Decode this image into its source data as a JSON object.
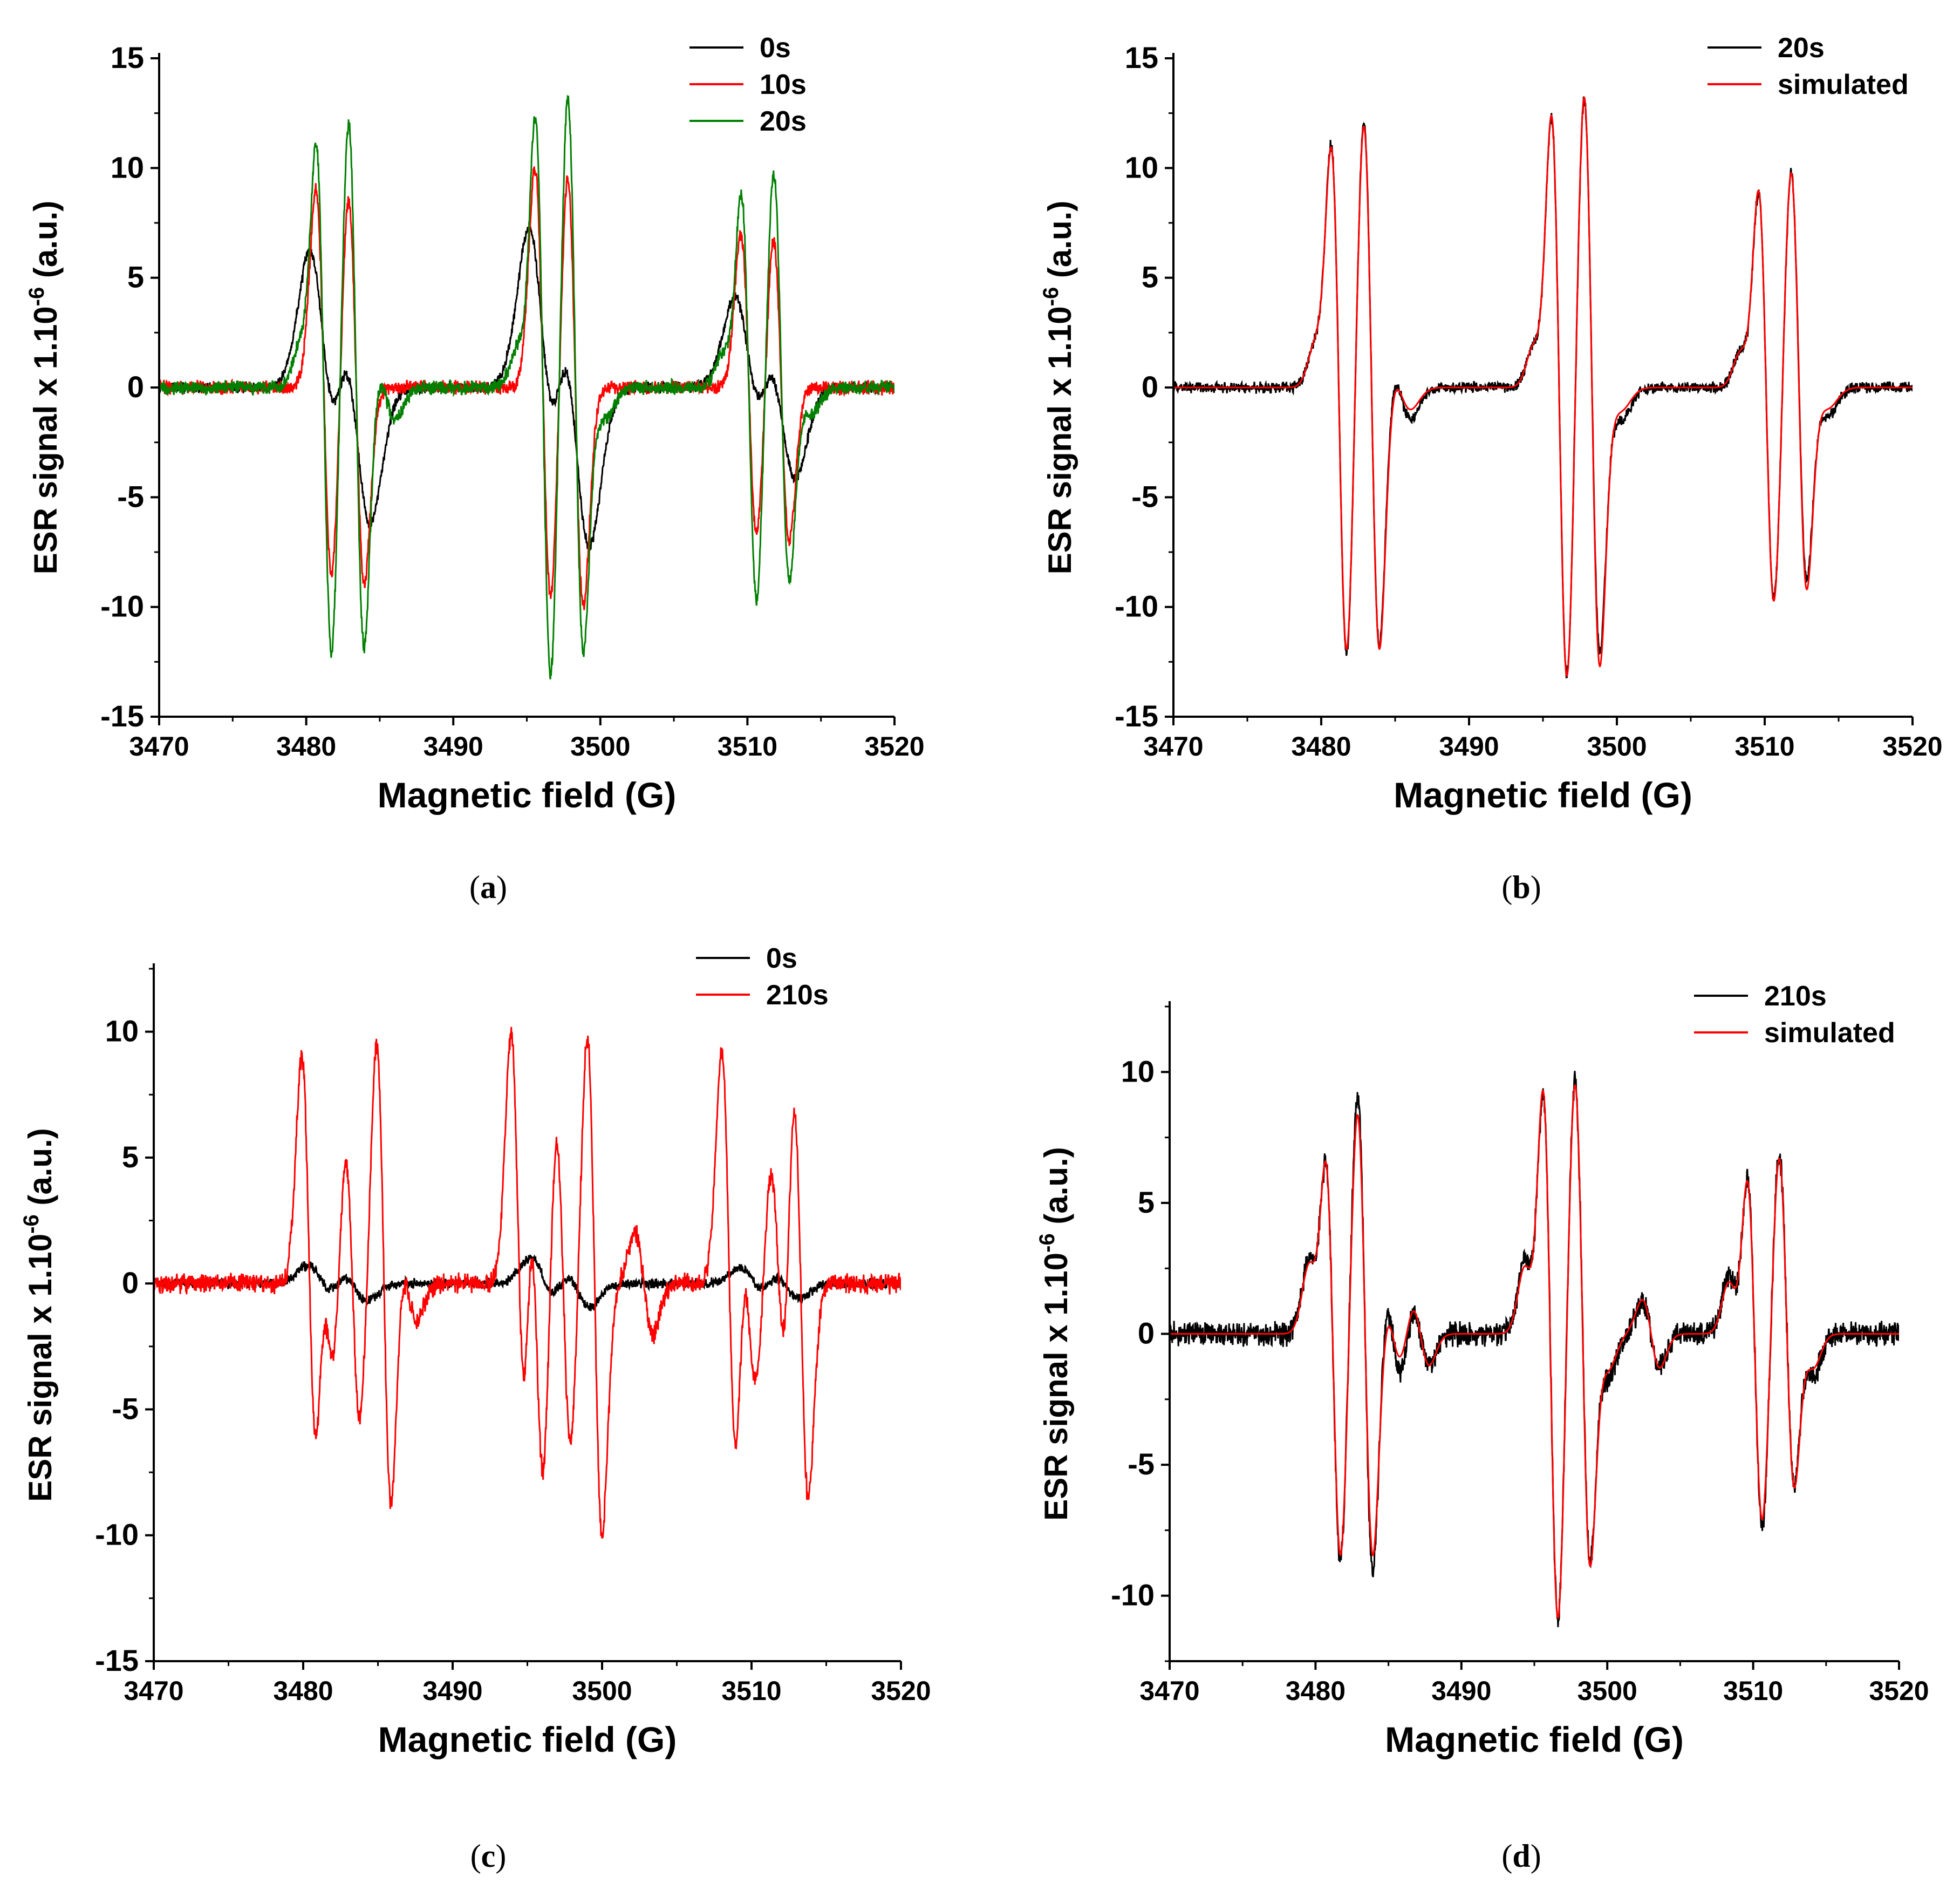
{
  "figure": {
    "captions": [
      {
        "open": "(",
        "letter": "a",
        "close": ")"
      },
      {
        "open": "(",
        "letter": "b",
        "close": ")"
      },
      {
        "open": "(",
        "letter": "c",
        "close": ")"
      },
      {
        "open": "(",
        "letter": "d",
        "close": ")"
      }
    ]
  },
  "chart_data": [
    {
      "type": "line",
      "panel": "a",
      "xlabel": "Magnetic field (G)",
      "ylabel": "ESR signal x 1.10^-6 (a.u.)",
      "ylabel_parts": {
        "main": "ESR signal x 1.10",
        "sup": "-6",
        "tail": " (a.u.)"
      },
      "xlim": [
        3470,
        3520
      ],
      "ylim": [
        -15,
        15
      ],
      "xticks": [
        "3470",
        "3480",
        "3490",
        "3500",
        "3510",
        "3520"
      ],
      "yticks": [
        "-15",
        "-10",
        "-5",
        "0",
        "5",
        "10",
        "15"
      ],
      "legend_position": "top-right",
      "series": [
        {
          "name": "0s",
          "color": "#000000",
          "lines": [
            [
              3481.2,
              1.0,
              6
            ],
            [
              3483.4,
              1.0,
              6
            ],
            [
              3496.1,
              1.0,
              7
            ],
            [
              3498.3,
              1.0,
              7
            ],
            [
              3510.1,
              1.0,
              4
            ],
            [
              3512.3,
              1.0,
              4
            ]
          ],
          "noise": 0.2
        },
        {
          "name": "10s",
          "color": "#ff0000",
          "lines": [
            [
              3481.2,
              0.55,
              9
            ],
            [
              3483.4,
              0.55,
              9
            ],
            [
              3496.1,
              0.55,
              10
            ],
            [
              3498.3,
              0.55,
              10
            ],
            [
              3510.1,
              0.55,
              7
            ],
            [
              3512.3,
              0.55,
              7
            ]
          ],
          "noise": 0.25
        },
        {
          "name": "20s",
          "color": "#008000",
          "lines": [
            [
              3481.2,
              0.55,
              12.6
            ],
            [
              3483.4,
              0.55,
              12.6
            ],
            [
              3496.1,
              0.55,
              13.7
            ],
            [
              3498.3,
              0.55,
              13.5
            ],
            [
              3510.1,
              0.55,
              10.1
            ],
            [
              3512.3,
              0.55,
              10.0
            ],
            [
              3480.0,
              0.55,
              1.6
            ],
            [
              3494.8,
              0.55,
              1.6
            ],
            [
              3508.8,
              0.55,
              1.4
            ],
            [
              3485.3,
              0.75,
              1.4
            ],
            [
              3499.6,
              0.75,
              1.4
            ],
            [
              3513.6,
              0.75,
              1.2
            ]
          ],
          "noise": 0.25
        }
      ]
    },
    {
      "type": "line",
      "panel": "b",
      "xlabel": "Magnetic field (G)",
      "ylabel": "ESR signal x 1.10^-6 (a.u.)",
      "ylabel_parts": {
        "main": "ESR signal x 1.10",
        "sup": "-6",
        "tail": " (a.u.)"
      },
      "xlim": [
        3470,
        3520
      ],
      "ylim": [
        -15,
        15
      ],
      "xticks": [
        "3470",
        "3480",
        "3490",
        "3500",
        "3510",
        "3520"
      ],
      "yticks": [
        "-15",
        "-10",
        "-5",
        "0",
        "5",
        "10",
        "15"
      ],
      "legend_position": "top-right",
      "series": [
        {
          "name": "20s",
          "color": "#000000",
          "lines": [
            [
              3481.2,
              0.55,
              12.6
            ],
            [
              3483.4,
              0.55,
              12.6
            ],
            [
              3496.1,
              0.55,
              13.7
            ],
            [
              3498.3,
              0.55,
              13.5
            ],
            [
              3510.1,
              0.55,
              10.1
            ],
            [
              3512.3,
              0.55,
              10.0
            ],
            [
              3480.0,
              0.55,
              1.6
            ],
            [
              3494.8,
              0.55,
              1.6
            ],
            [
              3508.8,
              0.55,
              1.4
            ],
            [
              3485.3,
              0.75,
              1.4
            ],
            [
              3499.6,
              0.75,
              1.4
            ],
            [
              3513.6,
              0.75,
              1.2
            ]
          ],
          "noise": 0.2
        },
        {
          "name": "simulated",
          "color": "#ff0000",
          "lines": [
            [
              3481.2,
              0.55,
              12.5
            ],
            [
              3483.4,
              0.55,
              12.5
            ],
            [
              3496.1,
              0.55,
              13.8
            ],
            [
              3498.3,
              0.55,
              13.7
            ],
            [
              3510.1,
              0.55,
              10.2
            ],
            [
              3512.3,
              0.55,
              10.1
            ],
            [
              3480.0,
              0.55,
              1.6
            ],
            [
              3494.8,
              0.55,
              1.6
            ],
            [
              3508.8,
              0.55,
              1.4
            ],
            [
              3485.3,
              0.75,
              1.0
            ],
            [
              3499.6,
              0.75,
              1.0
            ],
            [
              3513.6,
              0.75,
              0.9
            ]
          ],
          "noise": 0
        }
      ]
    },
    {
      "type": "line",
      "panel": "c",
      "xlabel": "Magnetic field (G)",
      "ylabel": "ESR signal x 1.10^-6 (a.u.)",
      "ylabel_parts": {
        "main": "ESR signal x 1.10",
        "sup": "-6",
        "tail": " (a.u.)"
      },
      "xlim": [
        3470,
        3520
      ],
      "ylim": [
        -15,
        12.5
      ],
      "xticks": [
        "3470",
        "3480",
        "3490",
        "3500",
        "3510",
        "3520"
      ],
      "yticks": [
        "-15",
        "-10",
        "-5",
        "0",
        "5",
        "10"
      ],
      "legend_position": "top-right",
      "series": [
        {
          "name": "0s",
          "color": "#000000",
          "lines": [
            [
              3481.2,
              0.9,
              0.7
            ],
            [
              3483.4,
              0.9,
              0.7
            ],
            [
              3496.1,
              0.9,
              1.0
            ],
            [
              3498.3,
              0.9,
              0.9
            ],
            [
              3510.1,
              0.9,
              0.6
            ],
            [
              3512.3,
              0.9,
              0.6
            ]
          ],
          "noise": 0.15
        },
        {
          "name": "210s",
          "color": "#ff0000",
          "lines": [
            [
              3480.4,
              0.5,
              9.0
            ],
            [
              3481.6,
              0.5,
              3.5
            ],
            [
              3483.3,
              0.5,
              5.5
            ],
            [
              3485.4,
              0.5,
              9.5
            ],
            [
              3487.0,
              0.6,
              1.5
            ],
            [
              3494.4,
              0.5,
              9.8
            ],
            [
              3495.6,
              0.5,
              8.0
            ],
            [
              3497.4,
              0.5,
              6.5
            ],
            [
              3499.5,
              0.5,
              9.9
            ],
            [
              3502.8,
              0.6,
              2.0
            ],
            [
              3508.5,
              0.5,
              9.2
            ],
            [
              3509.8,
              0.5,
              4.0
            ],
            [
              3511.8,
              0.5,
              4.5
            ],
            [
              3513.3,
              0.5,
              8.5
            ]
          ],
          "noise": 0.3
        }
      ]
    },
    {
      "type": "line",
      "panel": "d",
      "xlabel": "Magnetic field (G)",
      "ylabel": "ESR signal x 1.10^-6 (a.u.)",
      "ylabel_parts": {
        "main": "ESR signal x 1.10",
        "sup": "-6",
        "tail": " (a.u.)"
      },
      "xlim": [
        3470,
        3520
      ],
      "ylim": [
        -12.5,
        12.5
      ],
      "xticks": [
        "3470",
        "3480",
        "3490",
        "3500",
        "3510",
        "3520"
      ],
      "yticks": [
        "-10",
        "-5",
        "0",
        "5",
        "10"
      ],
      "legend_position": "top-right",
      "series": [
        {
          "name": "210s",
          "color": "#000000",
          "lines": [
            [
              3481.2,
              0.55,
              9.0
            ],
            [
              3483.4,
              0.55,
              9.5
            ],
            [
              3496.1,
              0.55,
              11.3
            ],
            [
              3498.3,
              0.55,
              10.1
            ],
            [
              3510.1,
              0.55,
              7.6
            ],
            [
              3512.3,
              0.55,
              7.1
            ],
            [
              3480.0,
              0.55,
              2.5
            ],
            [
              3494.8,
              0.55,
              2.5
            ],
            [
              3508.8,
              0.55,
              2.0
            ],
            [
              3485.3,
              0.6,
              1.8
            ],
            [
              3487.2,
              0.6,
              1.2
            ],
            [
              3499.6,
              0.6,
              1.5
            ],
            [
              3503.0,
              0.6,
              1.2
            ],
            [
              3513.6,
              0.6,
              1.5
            ]
          ],
          "noise": 0.35
        },
        {
          "name": "simulated",
          "color": "#ff0000",
          "lines": [
            [
              3481.2,
              0.55,
              8.8
            ],
            [
              3483.4,
              0.55,
              8.8
            ],
            [
              3496.1,
              0.55,
              11.3
            ],
            [
              3498.3,
              0.55,
              10.0
            ],
            [
              3510.1,
              0.55,
              7.4
            ],
            [
              3512.3,
              0.55,
              7.0
            ],
            [
              3480.0,
              0.55,
              2.3
            ],
            [
              3494.8,
              0.55,
              2.3
            ],
            [
              3508.8,
              0.55,
              1.8
            ],
            [
              3485.3,
              0.6,
              1.2
            ],
            [
              3487.2,
              0.6,
              1.2
            ],
            [
              3499.6,
              0.6,
              1.2
            ],
            [
              3503.0,
              0.6,
              1.3
            ],
            [
              3513.6,
              0.6,
              1.2
            ]
          ],
          "noise": 0
        }
      ]
    }
  ]
}
